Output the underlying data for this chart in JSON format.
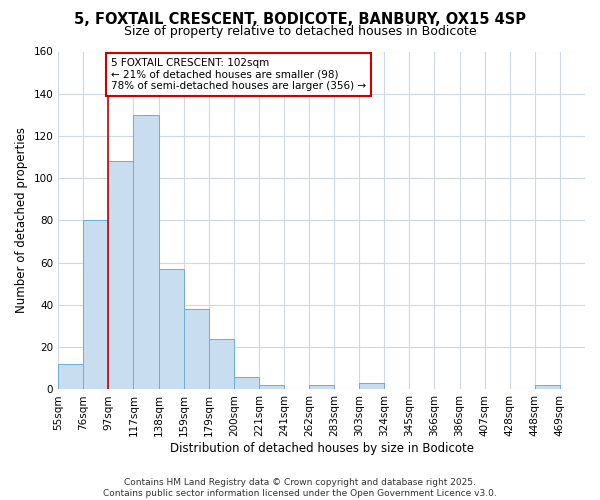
{
  "title1": "5, FOXTAIL CRESCENT, BODICOTE, BANBURY, OX15 4SP",
  "title2": "Size of property relative to detached houses in Bodicote",
  "xlabel": "Distribution of detached houses by size in Bodicote",
  "ylabel": "Number of detached properties",
  "bins": [
    "55sqm",
    "76sqm",
    "97sqm",
    "117sqm",
    "138sqm",
    "159sqm",
    "179sqm",
    "200sqm",
    "221sqm",
    "241sqm",
    "262sqm",
    "283sqm",
    "303sqm",
    "324sqm",
    "345sqm",
    "366sqm",
    "386sqm",
    "407sqm",
    "428sqm",
    "448sqm",
    "469sqm"
  ],
  "values": [
    12,
    80,
    108,
    130,
    57,
    38,
    24,
    6,
    2,
    0,
    2,
    0,
    3,
    0,
    0,
    0,
    0,
    0,
    0,
    2,
    0
  ],
  "bar_color": "#c8ddf0",
  "bar_edge_color": "#6aaed6",
  "vline_x": 2.0,
  "vline_color": "#cc0000",
  "annotation_text": "5 FOXTAIL CRESCENT: 102sqm\n← 21% of detached houses are smaller (98)\n78% of semi-detached houses are larger (356) →",
  "annotation_box_color": "#ffffff",
  "annotation_box_edge": "#cc0000",
  "ylim": [
    0,
    160
  ],
  "yticks": [
    0,
    20,
    40,
    60,
    80,
    100,
    120,
    140,
    160
  ],
  "footer_text": "Contains HM Land Registry data © Crown copyright and database right 2025.\nContains public sector information licensed under the Open Government Licence v3.0.",
  "bg_color": "#ffffff",
  "grid_color": "#d0d8e8",
  "title_fontsize": 10.5,
  "subtitle_fontsize": 9,
  "axis_label_fontsize": 8.5,
  "tick_fontsize": 7.5,
  "footer_fontsize": 6.5
}
